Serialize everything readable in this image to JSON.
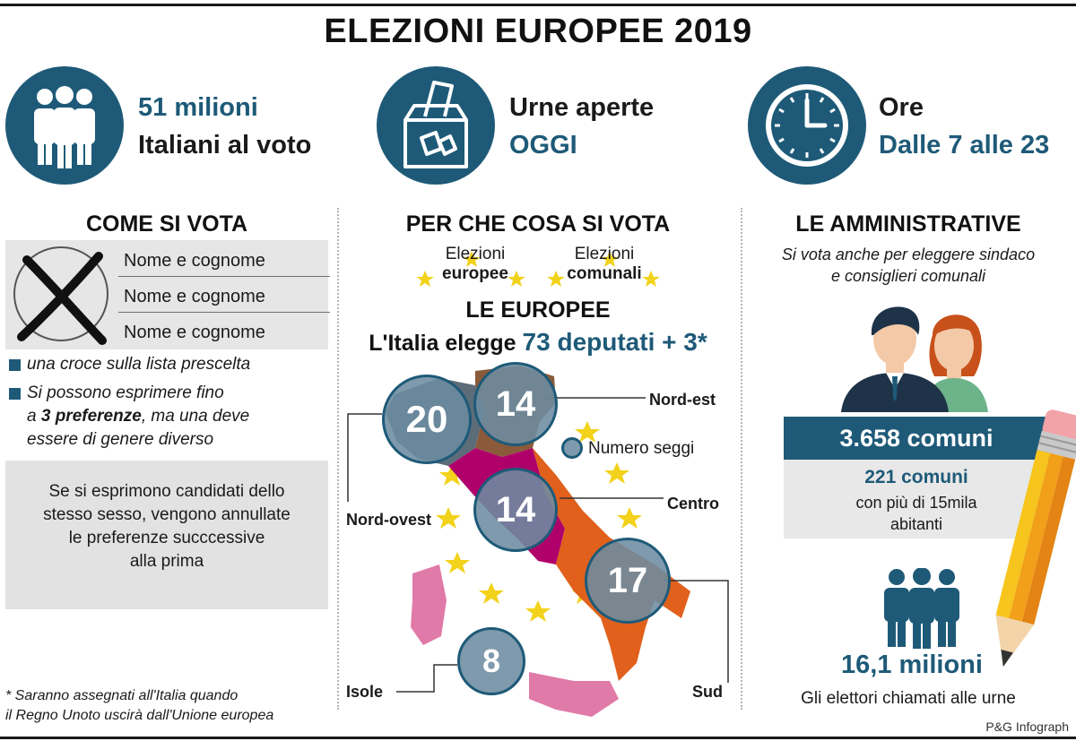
{
  "title": "ELEZIONI EUROPEE 2019",
  "header": {
    "voters": {
      "line1": "51 milioni",
      "line2": "Italiani al voto"
    },
    "urns": {
      "line1": "Urne aperte",
      "line2": "OGGI"
    },
    "hours": {
      "line1": "Ore",
      "line2": "Dalle 7 alle 23"
    }
  },
  "how_to_vote": {
    "title": "COME SI VOTA",
    "ballot_names": [
      "Nome e cognome",
      "Nome e cognome",
      "Nome e cognome"
    ],
    "bullet1": "una croce sulla lista prescelta",
    "bullet2_line1": "Si possono esprimere fino",
    "bullet2_line2_pre": "a ",
    "bullet2_line2_bold": "3 preferenze",
    "bullet2_line2_post": ", ma una deve",
    "bullet2_line3": "essere di genere diverso",
    "note_lines": [
      "Se si esprimono candidati dello",
      "stesso sesso, vengono annullate",
      "le preferenze succcessive",
      "alla prima"
    ],
    "footnote_lines": [
      "* Saranno assegnati all'Italia quando",
      "il Regno Unoto uscirà dall'Unione europea"
    ]
  },
  "what_to_vote": {
    "title": "PER CHE COSA SI VOTA",
    "election1_line1": "Elezioni",
    "election1_line2": "europee",
    "election2_line1": "Elezioni",
    "election2_line2": "comunali",
    "europee_title": "LE EUROPEE",
    "elects_pre": "L'Italia elegge",
    "elects_highlight": "73 deputati + 3*",
    "legend": "Numero seggi",
    "regions": [
      {
        "name": "Nord-ovest",
        "seats": "20"
      },
      {
        "name": "Nord-est",
        "seats": "14"
      },
      {
        "name": "Centro",
        "seats": "14"
      },
      {
        "name": "Sud",
        "seats": "17"
      },
      {
        "name": "Isole",
        "seats": "8"
      }
    ]
  },
  "administrative": {
    "title": "LE AMMINISTRATIVE",
    "subtitle_lines": [
      "Si vota anche per eleggere sindaco",
      "e consiglieri comunali"
    ],
    "comuni": "3.658 comuni",
    "big_comuni": "221 comuni",
    "big_comuni_lines": [
      "con più di 15mila",
      "abitanti"
    ],
    "voters_count": "16,1 milioni",
    "voters_caption": "Gli elettori chiamati alle urne"
  },
  "credit": "P&G Infograph",
  "colors": {
    "accent": "#1e5a78",
    "nord_est": "#8a5a3a",
    "centro": "#b0006a",
    "sud": "#e0601c",
    "isole": "#e07aa8",
    "stars": "#f2d21a"
  },
  "icons": [
    "people-icon",
    "ballot-box-icon",
    "clock-icon",
    "voters-people-icon",
    "pencil-icon",
    "couple-icon",
    "cross-mark-icon",
    "star-icon"
  ]
}
